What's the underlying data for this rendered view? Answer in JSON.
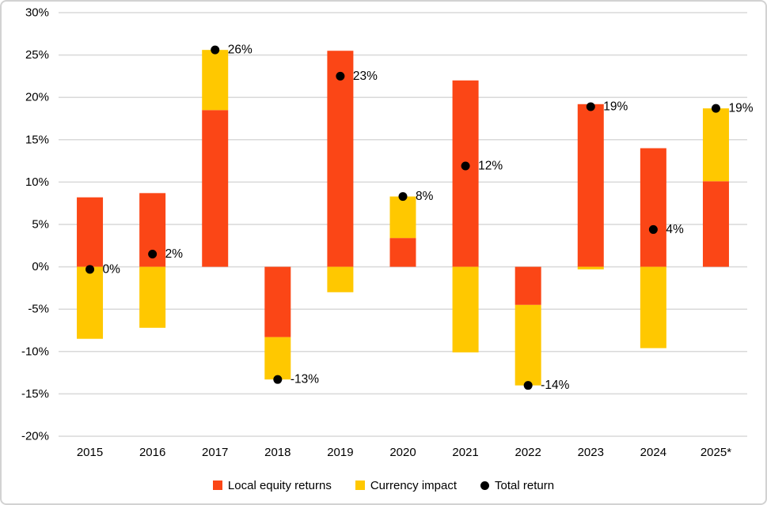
{
  "chart_data": {
    "type": "bar",
    "stacked": true,
    "title": "",
    "xlabel": "",
    "ylabel": "",
    "categories": [
      "2015",
      "2016",
      "2017",
      "2018",
      "2019",
      "2020",
      "2021",
      "2022",
      "2023",
      "2024",
      "2025*"
    ],
    "series": [
      {
        "name": "Local equity returns",
        "color": "#fb4616",
        "values": [
          8.2,
          8.7,
          18.5,
          -8.3,
          25.5,
          3.4,
          22.0,
          -4.5,
          19.2,
          14.0,
          10.1
        ]
      },
      {
        "name": "Currency impact",
        "color": "#ffc800",
        "values": [
          -8.5,
          -7.2,
          7.1,
          -5.0,
          -3.0,
          4.9,
          -10.1,
          -9.5,
          -0.3,
          -9.6,
          8.6
        ]
      }
    ],
    "points_series": {
      "name": "Total return",
      "color": "#000000",
      "values": [
        -0.3,
        1.5,
        25.6,
        -13.3,
        22.5,
        8.3,
        11.9,
        -14.0,
        18.9,
        4.4,
        18.7
      ],
      "labels": [
        "0%",
        "2%",
        "26%",
        "-13%",
        "23%",
        "8%",
        "12%",
        "-14%",
        "19%",
        "4%",
        "19%"
      ]
    },
    "y_axis": {
      "min": -20,
      "max": 30,
      "step": 5,
      "suffix": "%"
    },
    "grid": true,
    "legend_position": "bottom",
    "colors": {
      "gridline": "#d9d9d9",
      "text": "#000000",
      "background": "#ffffff",
      "frame_border": "#d2d2d2"
    }
  }
}
